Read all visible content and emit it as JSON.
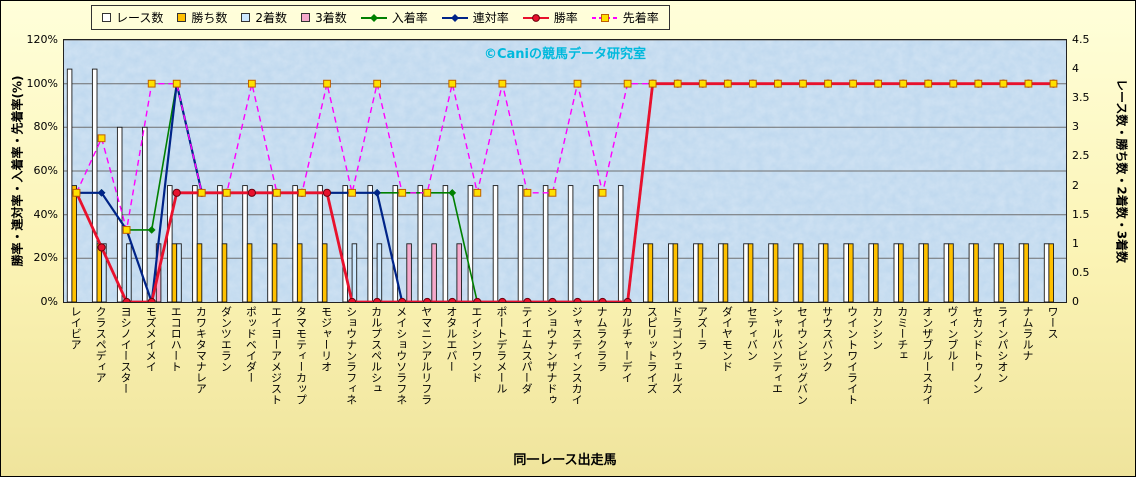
{
  "watermark": "©Caniの競馬データ研究室",
  "axes": {
    "left_title": "勝率・連対率・入着率・先着率(%)",
    "right_title": "レース数・勝ち数・2着数・3着数",
    "x_title": "同一レース出走馬",
    "left_ticks": [
      "0%",
      "20%",
      "40%",
      "60%",
      "80%",
      "100%",
      "120%"
    ],
    "right_ticks": [
      "0",
      "0.5",
      "1",
      "1.5",
      "2",
      "2.5",
      "3",
      "3.5",
      "4",
      "4.5"
    ]
  },
  "chart_data": {
    "type": "combo-bar-line",
    "categories": [
      "レイビア",
      "クラスペディア",
      "ヨシノイースター",
      "モズメイメイ",
      "エコロハート",
      "カワキタマナレア",
      "ダンツエラン",
      "ポッドベイダー",
      "エイヨーアメジスト",
      "タマモティーカップ",
      "モジャーリオ",
      "ショウナンラフィネ",
      "カルプスペルシュ",
      "メイショウソラフネ",
      "ヤマニンアルリフラ",
      "オタルエバー",
      "エイシンワンド",
      "ポートデラメール",
      "テイエムスパーダ",
      "ショウナンザナドゥ",
      "ジャスティンスカイ",
      "ナムラクララ",
      "カルチャーデイ",
      "スピリットライズ",
      "ドラゴンウェルズ",
      "アズーラ",
      "ダイヤモンド",
      "セティバン",
      "シャルバンティエ",
      "セイウンビッグバン",
      "サウスバンク",
      "ウイントワイライト",
      "カンシン",
      "カミーチェ",
      "オンザブルースカイ",
      "ヴィンブルー",
      "セカンドトゥノン",
      "ラインパシオン",
      "ナムラルナ",
      "ワース"
    ],
    "left_axis": {
      "min": 0,
      "max": 120,
      "unit": "%"
    },
    "right_axis": {
      "min": 0,
      "max": 4.5
    },
    "bar_series": [
      {
        "key": "race-count",
        "name": "レース数",
        "axis": "right",
        "color": "#ffffff",
        "values": [
          4,
          4,
          3,
          3,
          2,
          2,
          2,
          2,
          2,
          2,
          2,
          2,
          2,
          2,
          2,
          2,
          2,
          2,
          2,
          2,
          2,
          2,
          2,
          1,
          1,
          1,
          1,
          1,
          1,
          1,
          1,
          1,
          1,
          1,
          1,
          1,
          1,
          1,
          1,
          1
        ]
      },
      {
        "key": "win-count",
        "name": "勝ち数",
        "axis": "right",
        "color": "#ffc000",
        "values": [
          2,
          1,
          0,
          0,
          1,
          1,
          1,
          1,
          1,
          1,
          1,
          0,
          0,
          0,
          0,
          0,
          0,
          0,
          0,
          0,
          0,
          0,
          0,
          1,
          1,
          1,
          1,
          1,
          1,
          1,
          1,
          1,
          1,
          1,
          1,
          1,
          1,
          1,
          1,
          1
        ]
      },
      {
        "key": "second-count",
        "name": "2着数",
        "axis": "right",
        "color": "#cce8ff",
        "values": [
          0,
          1,
          1,
          0,
          1,
          0,
          0,
          0,
          0,
          0,
          0,
          1,
          1,
          0,
          0,
          0,
          0,
          0,
          0,
          0,
          0,
          0,
          0,
          0,
          0,
          0,
          0,
          0,
          0,
          0,
          0,
          0,
          0,
          0,
          0,
          0,
          0,
          0,
          0,
          0
        ]
      },
      {
        "key": "third-count",
        "name": "3着数",
        "axis": "right",
        "color": "#f5a9cb",
        "values": [
          0,
          0,
          0,
          1,
          0,
          0,
          0,
          0,
          0,
          0,
          0,
          0,
          0,
          1,
          1,
          1,
          0,
          0,
          0,
          0,
          0,
          0,
          0,
          0,
          0,
          0,
          0,
          0,
          0,
          0,
          0,
          0,
          0,
          0,
          0,
          0,
          0,
          0,
          0,
          0
        ]
      }
    ],
    "line_series": [
      {
        "key": "placing-rate",
        "name": "入着率",
        "axis": "left",
        "color": "#008000",
        "marker": "diamond",
        "width": 1.6,
        "values": [
          50,
          50,
          33,
          33,
          100,
          50,
          50,
          50,
          50,
          50,
          50,
          50,
          50,
          50,
          50,
          50,
          0,
          0,
          0,
          0,
          0,
          0,
          0,
          100,
          100,
          100,
          100,
          100,
          100,
          100,
          100,
          100,
          100,
          100,
          100,
          100,
          100,
          100,
          100,
          100
        ]
      },
      {
        "key": "quinella-rate",
        "name": "連対率",
        "axis": "left",
        "color": "#002488",
        "marker": "diamond",
        "width": 2.2,
        "values": [
          50,
          50,
          33,
          0,
          100,
          50,
          50,
          50,
          50,
          50,
          50,
          50,
          50,
          0,
          0,
          0,
          0,
          0,
          0,
          0,
          0,
          0,
          0,
          100,
          100,
          100,
          100,
          100,
          100,
          100,
          100,
          100,
          100,
          100,
          100,
          100,
          100,
          100,
          100,
          100
        ]
      },
      {
        "key": "win-rate",
        "name": "勝率",
        "axis": "left",
        "color": "#e8112d",
        "marker": "circle",
        "width": 2.8,
        "values": [
          50,
          25,
          0,
          0,
          50,
          50,
          50,
          50,
          50,
          50,
          50,
          0,
          0,
          0,
          0,
          0,
          0,
          0,
          0,
          0,
          0,
          0,
          0,
          100,
          100,
          100,
          100,
          100,
          100,
          100,
          100,
          100,
          100,
          100,
          100,
          100,
          100,
          100,
          100,
          100
        ]
      },
      {
        "key": "finish-ahead-rate",
        "name": "先着率",
        "axis": "left",
        "color": "#ff00ff",
        "marker": "square",
        "marker_fill": "#ffe000",
        "dashed": true,
        "width": 1.4,
        "values": [
          50,
          75,
          33,
          100,
          100,
          50,
          50,
          100,
          50,
          50,
          100,
          50,
          100,
          50,
          50,
          100,
          50,
          100,
          50,
          50,
          100,
          50,
          100,
          100,
          100,
          100,
          100,
          100,
          100,
          100,
          100,
          100,
          100,
          100,
          100,
          100,
          100,
          100,
          100,
          100
        ]
      }
    ]
  }
}
